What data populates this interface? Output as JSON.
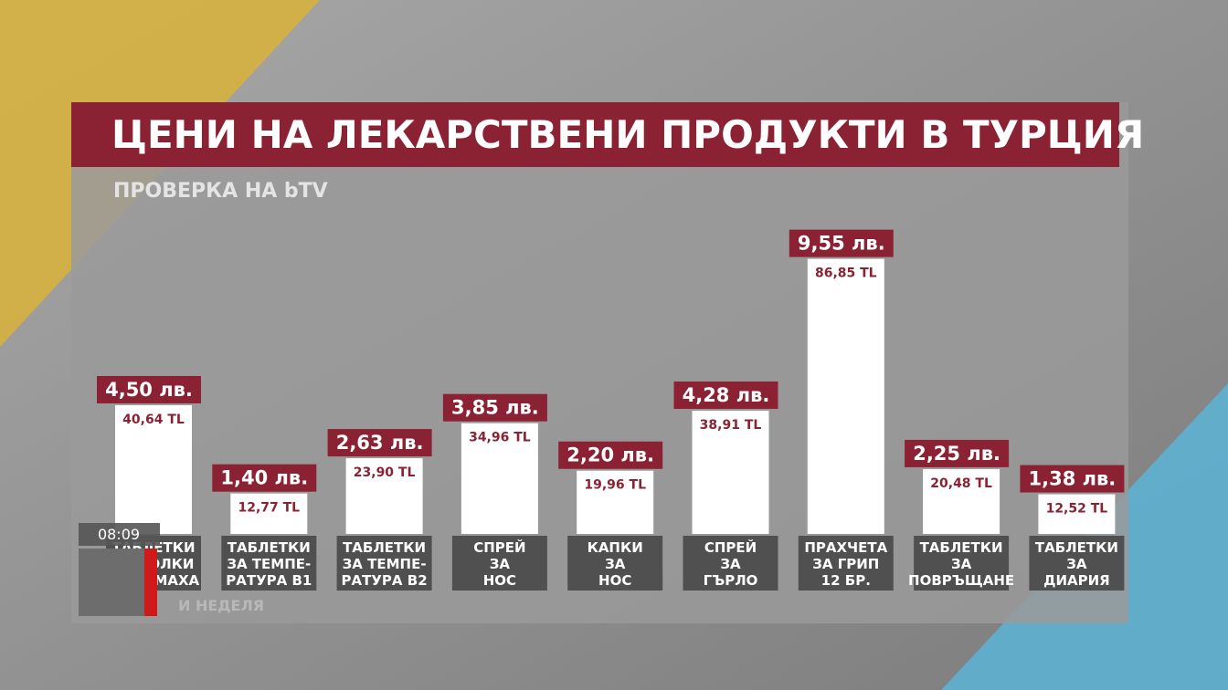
{
  "chart_data": {
    "type": "bar",
    "title": "ЦЕНИ НА ЛЕКАРСТВЕНИ ПРОДУКТИ В ТУРЦИЯ",
    "subtitle": "ПРОВЕРКА НА bTV",
    "categories": [
      "ТАБЛЕТКИ\nЗА БОЛКИ\nВ СТОМАХА",
      "ТАБЛЕТКИ\nЗА ТЕМПЕ-\nРАТУРА В1",
      "ТАБЛЕТКИ\nЗА ТЕМПЕ-\nРАТУРА В2",
      "СПРЕЙ\nЗА\nНОС",
      "КАПКИ\nЗА\nНОС",
      "СПРЕЙ\nЗА\nГЪРЛО",
      "ПРАХЧЕТА\nЗА ГРИП\n12 БР.",
      "ТАБЛЕТКИ\nЗА\nПОВРЪЩАНЕ",
      "ТАБЛЕТКИ\nЗА\nДИАРИЯ"
    ],
    "series": [
      {
        "color": "#ffffff",
        "label_color": "#8b2233",
        "values": [
          40.64,
          12.77,
          23.9,
          34.96,
          19.96,
          38.91,
          86.85,
          20.48,
          12.52
        ],
        "value_labels": [
          "40,64 TL",
          "12,77 TL",
          "23,90 TL",
          "34,96 TL",
          "19,96 TL",
          "38,91 TL",
          "86,85 TL",
          "20,48 TL",
          "12,52 TL"
        ]
      },
      {
        "color": "#8b2233",
        "values": [
          4.5,
          1.4,
          2.63,
          3.85,
          2.2,
          4.28,
          9.55,
          2.25,
          1.38
        ],
        "value_labels": [
          "4,50 лв.",
          "1,40 лв.",
          "2,63 лв.",
          "3,85 лв.",
          "2,20 лв.",
          "4,28 лв.",
          "9,55 лв.",
          "2,25 лв.",
          "1,38 лв."
        ]
      }
    ]
  },
  "broadcast_overlay": {
    "time": "08:09",
    "show": "И НЕДЕЛЯ"
  }
}
